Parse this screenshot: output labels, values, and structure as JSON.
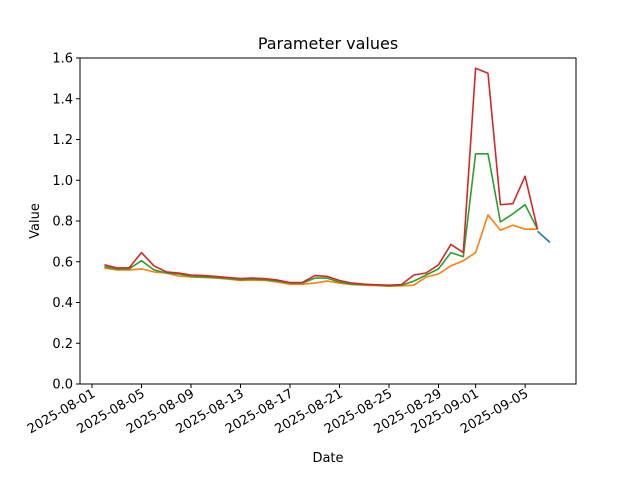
{
  "chart_data": {
    "type": "line",
    "title": "Parameter values",
    "xlabel": "Date",
    "ylabel": "Value",
    "ylim": [
      0.0,
      1.6
    ],
    "yticks": [
      0.0,
      0.2,
      0.4,
      0.6,
      0.8,
      1.0,
      1.2,
      1.4,
      1.6
    ],
    "ytick_labels": [
      "0.0",
      "0.2",
      "0.4",
      "0.6",
      "0.8",
      "1.0",
      "1.2",
      "1.4",
      "1.6"
    ],
    "xlim": [
      "2025-08-01",
      "2025-09-08"
    ],
    "xticks": [
      "2025-08-01",
      "2025-08-05",
      "2025-08-09",
      "2025-08-13",
      "2025-08-17",
      "2025-08-21",
      "2025-08-25",
      "2025-08-29",
      "2025-09-01",
      "2025-09-05"
    ],
    "grid": false,
    "x": [
      "2025-08-02",
      "2025-08-03",
      "2025-08-04",
      "2025-08-05",
      "2025-08-06",
      "2025-08-07",
      "2025-08-08",
      "2025-08-09",
      "2025-08-10",
      "2025-08-11",
      "2025-08-12",
      "2025-08-13",
      "2025-08-14",
      "2025-08-15",
      "2025-08-16",
      "2025-08-17",
      "2025-08-18",
      "2025-08-19",
      "2025-08-20",
      "2025-08-21",
      "2025-08-22",
      "2025-08-23",
      "2025-08-24",
      "2025-08-25",
      "2025-08-26",
      "2025-08-27",
      "2025-08-28",
      "2025-08-29",
      "2025-08-30",
      "2025-08-31",
      "2025-09-01",
      "2025-09-02",
      "2025-09-03",
      "2025-09-04",
      "2025-09-05",
      "2025-09-06"
    ],
    "series": [
      {
        "color": "#ff7f0e",
        "values": [
          0.57,
          0.56,
          0.56,
          0.565,
          0.55,
          0.545,
          0.53,
          0.525,
          0.523,
          0.52,
          0.515,
          0.508,
          0.51,
          0.508,
          0.5,
          0.49,
          0.49,
          0.495,
          0.505,
          0.495,
          0.488,
          0.485,
          0.483,
          0.48,
          0.482,
          0.485,
          0.525,
          0.54,
          0.58,
          0.605,
          0.645,
          0.83,
          0.755,
          0.78,
          0.76,
          0.76
        ]
      },
      {
        "color": "#2ca02c",
        "values": [
          0.575,
          0.565,
          0.565,
          0.605,
          0.56,
          0.545,
          0.54,
          0.528,
          0.526,
          0.522,
          0.518,
          0.512,
          0.515,
          0.512,
          0.505,
          0.495,
          0.495,
          0.52,
          0.52,
          0.5,
          0.49,
          0.488,
          0.485,
          0.482,
          0.485,
          0.505,
          0.535,
          0.565,
          0.645,
          0.625,
          1.13,
          1.13,
          0.795,
          0.835,
          0.88,
          0.76
        ]
      },
      {
        "color": "#d62728",
        "values": [
          0.585,
          0.57,
          0.57,
          0.645,
          0.58,
          0.55,
          0.545,
          0.535,
          0.532,
          0.528,
          0.522,
          0.518,
          0.52,
          0.517,
          0.51,
          0.498,
          0.498,
          0.532,
          0.528,
          0.508,
          0.495,
          0.49,
          0.487,
          0.485,
          0.488,
          0.535,
          0.545,
          0.585,
          0.685,
          0.645,
          1.55,
          1.525,
          0.88,
          0.885,
          1.02,
          0.76
        ]
      },
      {
        "color": "#1f77b4",
        "x": [
          "2025-09-06",
          "2025-09-07"
        ],
        "values": [
          0.75,
          0.695
        ]
      }
    ]
  }
}
